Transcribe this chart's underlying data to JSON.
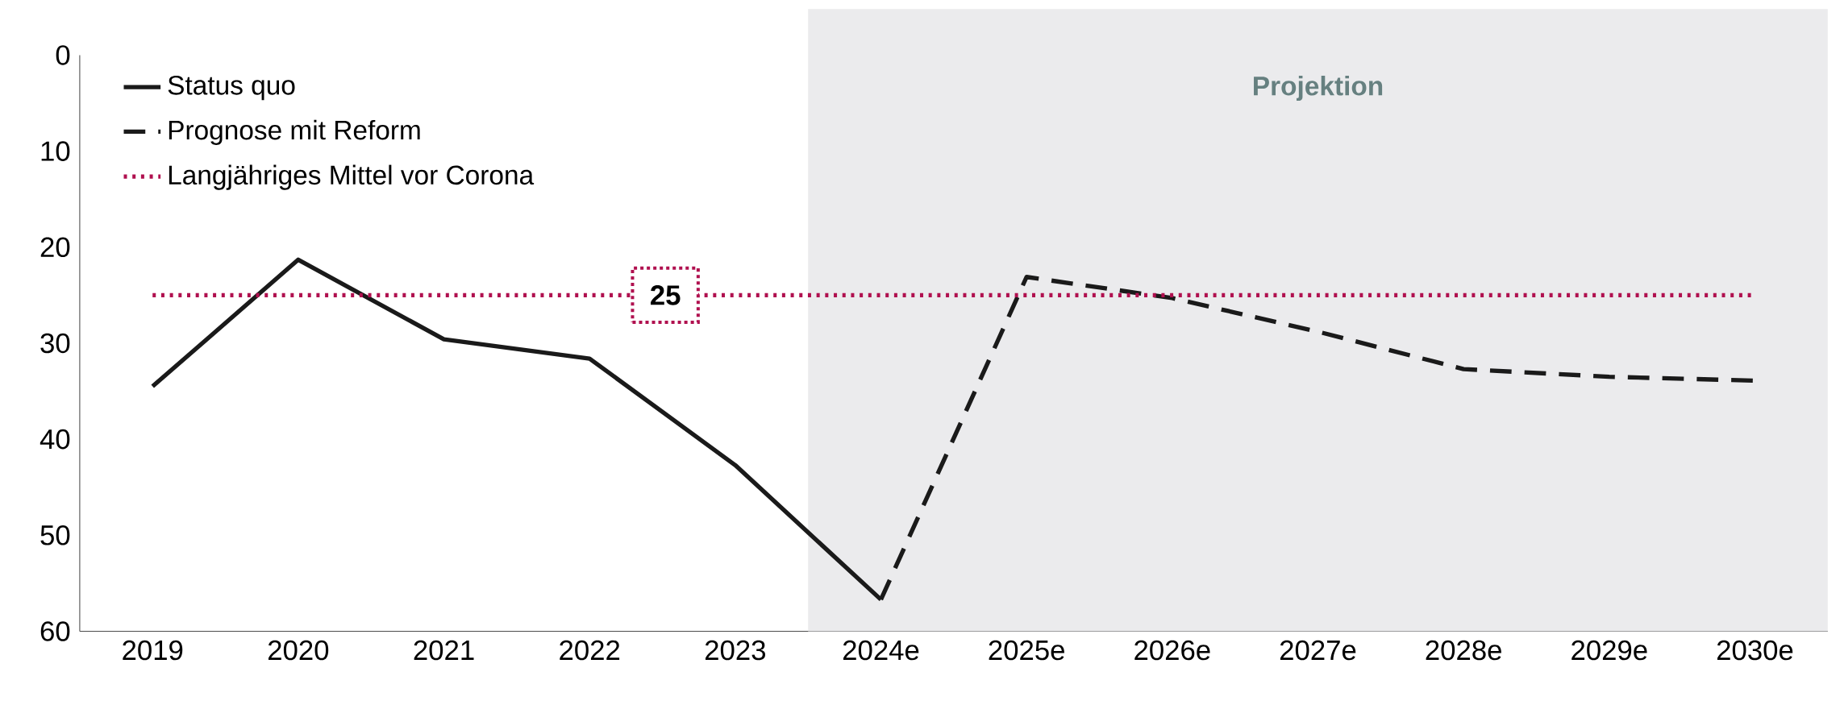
{
  "chart_data": {
    "type": "line",
    "categories": [
      "2019",
      "2020",
      "2021",
      "2022",
      "2023",
      "2024e",
      "2025e",
      "2026e",
      "2027e",
      "2028e",
      "2029e",
      "2030e"
    ],
    "series": [
      {
        "name": "Status quo",
        "color": "#1a1a1a",
        "line_style": "solid",
        "values": [
          34.5,
          21.3,
          29.6,
          31.6,
          42.7,
          56.7,
          null,
          null,
          null,
          null,
          null,
          null
        ]
      },
      {
        "name": "Prognose mit Reform",
        "color": "#1a1a1a",
        "line_style": "dashed",
        "values": [
          null,
          null,
          null,
          null,
          null,
          56.7,
          23.1,
          25.3,
          28.8,
          32.7,
          33.5,
          33.9
        ]
      },
      {
        "name": "Langjähriges Mittel vor Corona",
        "color": "#b0104f",
        "line_style": "dotted",
        "values": [
          25,
          25,
          25,
          25,
          25,
          25,
          25,
          25,
          25,
          25,
          25,
          25
        ]
      }
    ],
    "annotations": [
      {
        "text": "25",
        "y": 25
      }
    ],
    "bands": [
      {
        "axis": "x",
        "from": "2024e",
        "to": "2030e",
        "label": "Projektion",
        "color": "#ebebed"
      }
    ],
    "ylim": [
      60,
      0
    ],
    "yticks": [
      0,
      10,
      20,
      30,
      40,
      50,
      60
    ],
    "grid": false,
    "legend": "top left",
    "marker": "none"
  }
}
